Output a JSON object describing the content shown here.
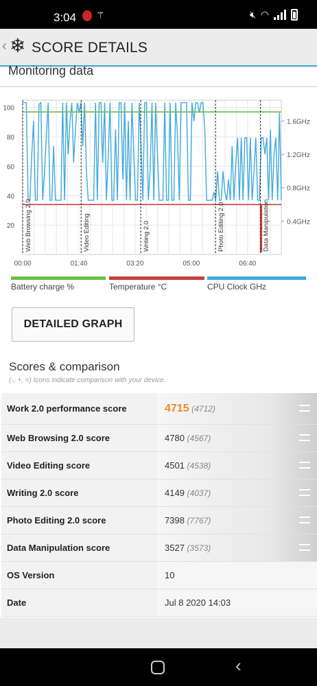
{
  "status_bar": {
    "time": "3:04",
    "icons": [
      "app-notification-icon",
      "wand-icon",
      "mute-icon",
      "wifi-icon",
      "signal-icon",
      "battery-icon"
    ]
  },
  "header": {
    "title": "SCORE DETAILS",
    "back_icon": "chevron-left-icon",
    "logo_icon": "snowflake-icon"
  },
  "monitoring": {
    "title": "Monitoring data",
    "legend": [
      {
        "label": "Battery charge %",
        "color": "#6cc04a"
      },
      {
        "label": "Temperature °C",
        "color": "#c8403c"
      },
      {
        "label": "CPU Clock GHz",
        "color": "#3fa9dd"
      }
    ]
  },
  "chart_data": {
    "type": "line",
    "x_tick_labels": [
      "00:00",
      "01:40",
      "03:20",
      "05:00",
      "06:40"
    ],
    "x_ticks_min": [
      0,
      100,
      200,
      300,
      400
    ],
    "xlim": [
      0,
      460
    ],
    "left_axis": {
      "ticks": [
        "20",
        "40",
        "60",
        "80",
        "100"
      ],
      "ylim": [
        0,
        105
      ]
    },
    "right_axis": {
      "ticks": [
        "0.4GHz",
        "0.8GHz",
        "1.2GHz",
        "1.6GHz"
      ],
      "ylim": [
        0,
        1.85
      ]
    },
    "phases": [
      {
        "label": "Web Browsing 2.0",
        "start_min": 0
      },
      {
        "label": "Video Editing",
        "start_min": 104
      },
      {
        "label": "Writing 2.0",
        "start_min": 210
      },
      {
        "label": "Photo Editing 2.0",
        "start_min": 343
      },
      {
        "label": "Data Manipulation",
        "start_min": 423
      }
    ],
    "series": [
      {
        "name": "Battery charge %",
        "color": "#6cc04a",
        "axis": "left",
        "points": [
          [
            0,
            97
          ],
          [
            460,
            97
          ]
        ]
      },
      {
        "name": "Temperature °C",
        "color": "#c8403c",
        "axis": "left",
        "points": [
          [
            0,
            34
          ],
          [
            423,
            34
          ],
          [
            423,
            2
          ],
          [
            425,
            2
          ],
          [
            425,
            34
          ],
          [
            460,
            34
          ]
        ]
      },
      {
        "name": "CPU Clock GHz",
        "color": "#3fa9dd",
        "axis": "right",
        "values": [
          1.82,
          1.82,
          1.82,
          0.65,
          0.65,
          1.2,
          1.6,
          0.65,
          0.65,
          1.8,
          1.82,
          0.65,
          1.0,
          1.4,
          1.82,
          0.65,
          0.65,
          1.3,
          0.65,
          0.65,
          0.65,
          0.65,
          1.82,
          0.65,
          1.82,
          1.2,
          1.6,
          1.82,
          1.1,
          1.5,
          1.82,
          1.7,
          1.82,
          1.3,
          1.82,
          1.0,
          0.65,
          0.65,
          0.65,
          0.65,
          1.82,
          0.65,
          1.82,
          1.82,
          1.1,
          1.82,
          0.65,
          1.2,
          1.82,
          0.65,
          0.65,
          1.5,
          0.65,
          1.82,
          1.82,
          0.9,
          1.82,
          0.65,
          1.6,
          0.65,
          1.82,
          1.2,
          0.65,
          0.65,
          1.82,
          1.3,
          0.65,
          1.82,
          1.82,
          0.65,
          1.0,
          1.82,
          0.65,
          1.82,
          1.2,
          0.65,
          0.65,
          0.65,
          1.82,
          0.65,
          0.65,
          1.82,
          0.65,
          0.65,
          1.82,
          1.4,
          0.65,
          1.82,
          1.82,
          1.82,
          1.82,
          0.65,
          0.65,
          1.82,
          1.6,
          1.82,
          1.82,
          1.7,
          1.82,
          1.82,
          1.5,
          0.65,
          0.65,
          0.65,
          0.65,
          0.75,
          0.65,
          1.0,
          0.65,
          0.65,
          1.0,
          0.75,
          0.65,
          0.9,
          0.65,
          1.3,
          0.65,
          1.1,
          1.4,
          0.65,
          1.4,
          0.65,
          1.4,
          1.4,
          0.65,
          1.4,
          0.65,
          1.0,
          1.4,
          0.65,
          0.65,
          1.4,
          1.4,
          1.2,
          1.4,
          0.65,
          1.5,
          0.65,
          1.2,
          1.4,
          0.65,
          1.7,
          0.65
        ]
      }
    ]
  },
  "detailed_graph_label": "DETAILED GRAPH",
  "scores": {
    "title": "Scores & comparison",
    "subtitle": "(-, +, =) Icons indicate comparison with your device.",
    "rows": [
      {
        "label": "Work 2.0 performance score",
        "value": "4715",
        "compare": "(4712)",
        "indicator": "equals-icon"
      },
      {
        "label": "Web Browsing 2.0 score",
        "value": "4780",
        "compare": "(4567)",
        "indicator": "equals-icon"
      },
      {
        "label": "Video Editing score",
        "value": "4501",
        "compare": "(4538)",
        "indicator": "equals-icon"
      },
      {
        "label": "Writing 2.0 score",
        "value": "4149",
        "compare": "(4037)",
        "indicator": "equals-icon"
      },
      {
        "label": "Photo Editing 2.0 score",
        "value": "7398",
        "compare": "(7767)",
        "indicator": "equals-icon"
      },
      {
        "label": "Data Manipulation score",
        "value": "3527",
        "compare": "(3573)",
        "indicator": "equals-icon"
      }
    ],
    "info": [
      {
        "label": "OS Version",
        "value": "10"
      },
      {
        "label": "Date",
        "value": "Jul 8 2020 14:03"
      }
    ]
  }
}
